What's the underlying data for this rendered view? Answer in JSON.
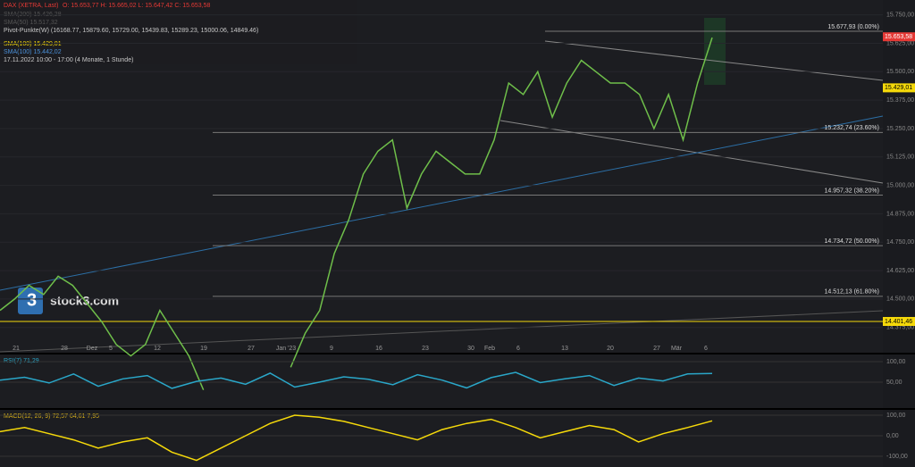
{
  "header": {
    "instrument": "DAX (XETRA, Last)",
    "ohlc": "O: 15.653,77   H: 15.665,02   L: 15.647,42   C: 15.653,58",
    "sma200": "SMA(200)  15.426,28",
    "sma50": "SMA(50)  15.517,32",
    "pivot": "Pivot-Punkte(W)  (16168.77,  15879.60,  15729.00,  15439.83,  15289.23,  15000.06,  14849.46)",
    "sma100a": "SMA(100)  15.429,01",
    "sma100b": "SMA(100)  15.442,02",
    "range": "17.11.2022 10:00 - 17:00   (4 Monate, 1 Stunde)"
  },
  "logo": "stock3.com",
  "price_axis": [
    {
      "value": 15750,
      "label": "15.750,00"
    },
    {
      "value": 15625,
      "label": "15.625,00"
    },
    {
      "value": 15500,
      "label": "15.500,00"
    },
    {
      "value": 15375,
      "label": "15.375,00"
    },
    {
      "value": 15250,
      "label": "15.250,00"
    },
    {
      "value": 15125,
      "label": "15.125,00"
    },
    {
      "value": 15000,
      "label": "15.000,00"
    },
    {
      "value": 14875,
      "label": "14.875,00"
    },
    {
      "value": 14750,
      "label": "14.750,00"
    },
    {
      "value": 14625,
      "label": "14.625,00"
    },
    {
      "value": 14500,
      "label": "14.500,00"
    },
    {
      "value": 14375,
      "label": "14.375,00"
    }
  ],
  "badges": [
    {
      "value": 15653.58,
      "label": "15.653,58",
      "color": "#e53935"
    },
    {
      "value": 15429.01,
      "label": "15.429,01",
      "color": "#f5d90a"
    },
    {
      "value": 14401.46,
      "label": "14.401,46",
      "color": "#f5d90a"
    }
  ],
  "fib_levels": [
    {
      "value": 15677.93,
      "label": "15.677,93 (0.00%)"
    },
    {
      "value": 15232.74,
      "label": "15.232,74 (23.60%)"
    },
    {
      "value": 14957.32,
      "label": "14.957,32 (38.20%)"
    },
    {
      "value": 14734.72,
      "label": "14.734,72 (50.00%)"
    },
    {
      "value": 14512.13,
      "label": "14.512,13 (61.80%)"
    }
  ],
  "dates": [
    "21",
    "28",
    "Dez",
    "5",
    "12",
    "19",
    "27",
    "Jan '23",
    "9",
    "16",
    "23",
    "30",
    "Feb",
    "6",
    "13",
    "20",
    "27",
    "Mär",
    "6"
  ],
  "closes": [
    14450,
    14500,
    14560,
    14520,
    14600,
    14560,
    14480,
    14400,
    14300,
    14250,
    14300,
    14450,
    14350,
    14250,
    14100,
    null,
    null,
    null,
    null,
    null,
    14200,
    14350,
    14450,
    14700,
    14850,
    15050,
    15150,
    15200,
    14900,
    15050,
    15150,
    15100,
    15050,
    15050,
    15200,
    15450,
    15400,
    15500,
    15300,
    15450,
    15550,
    15500,
    15450,
    15450,
    15400,
    15250,
    15400,
    15200,
    15450,
    15650
  ],
  "rsi": {
    "label": "RSI(7)  71,29",
    "ticks": [
      {
        "value": 100,
        "label": "100,00"
      },
      {
        "value": 50,
        "label": "50,00"
      }
    ],
    "values": [
      55,
      62,
      48,
      70,
      40,
      58,
      66,
      35,
      52,
      60,
      45,
      72,
      38,
      50,
      63,
      57,
      44,
      68,
      55,
      36,
      61,
      74,
      49,
      58,
      66,
      42,
      60,
      53,
      70,
      71
    ]
  },
  "macd": {
    "label": "MACD(12, 26, 9)  72,57  64,61  7,95",
    "ticks": [
      {
        "value": 100,
        "label": "100,00"
      },
      {
        "value": 0,
        "label": "0,00"
      },
      {
        "value": -100,
        "label": "-100,00"
      }
    ],
    "values": [
      20,
      40,
      10,
      -20,
      -60,
      -30,
      -10,
      -80,
      -120,
      -60,
      0,
      60,
      100,
      90,
      70,
      40,
      10,
      -20,
      30,
      60,
      80,
      40,
      -10,
      20,
      50,
      30,
      -30,
      10,
      40,
      72.57
    ]
  }
}
